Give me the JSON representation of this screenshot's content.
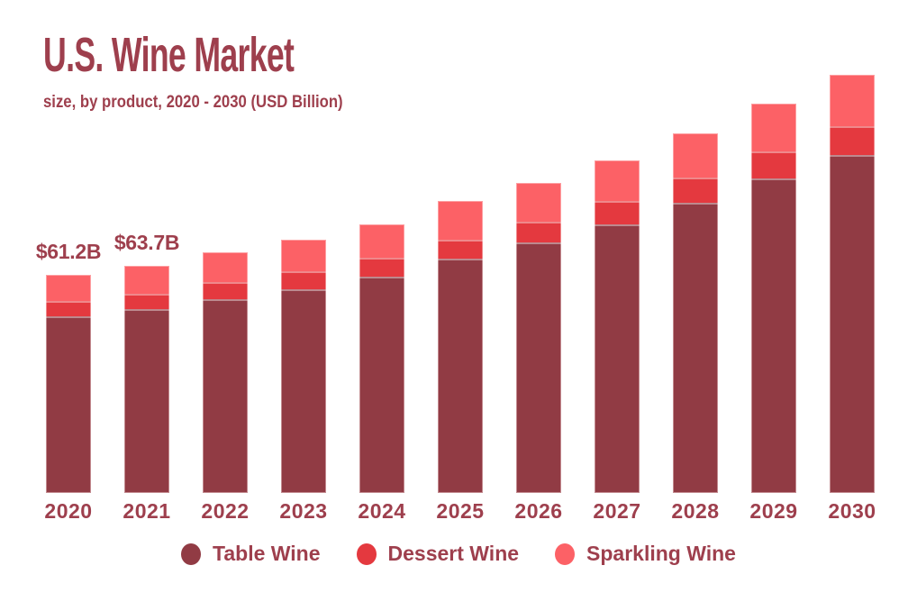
{
  "header": {
    "title": "U.S. Wine Market",
    "subtitle": "size, by product, 2020 - 2030 (USD Billion)"
  },
  "chart_data": {
    "type": "bar",
    "stacked": true,
    "title": "U.S. Wine Market",
    "subtitle": "size, by product, 2020 - 2030 (USD Billion)",
    "unit": "USD Billion",
    "categories": [
      "2020",
      "2021",
      "2022",
      "2023",
      "2024",
      "2025",
      "2026",
      "2027",
      "2028",
      "2029",
      "2030"
    ],
    "series": [
      {
        "name": "Table Wine",
        "color": "#913B44",
        "values": [
          49.4,
          51.4,
          54.2,
          57.2,
          60.6,
          65.7,
          70.2,
          75.2,
          81.4,
          88.1,
          94.6
        ]
      },
      {
        "name": "Dessert Wine",
        "color": "#E4393F",
        "values": [
          4.3,
          4.5,
          4.8,
          5.0,
          5.3,
          5.2,
          5.9,
          6.5,
          7.0,
          7.6,
          8.2
        ]
      },
      {
        "name": "Sparkling Wine",
        "color": "#FC6166",
        "values": [
          7.5,
          7.8,
          8.4,
          8.7,
          9.3,
          10.8,
          10.9,
          11.4,
          12.3,
          13.3,
          14.5
        ]
      }
    ],
    "totals": [
      61.2,
      63.7,
      67.4,
      70.9,
      75.2,
      81.7,
      87.0,
      93.1,
      100.7,
      109.0,
      117.3
    ],
    "annotations": [
      {
        "category": "2020",
        "text": "$61.2B"
      },
      {
        "category": "2021",
        "text": "$63.7B"
      }
    ],
    "legend": [
      "Table Wine",
      "Dessert Wine",
      "Sparkling Wine"
    ],
    "legend_position": "bottom",
    "grid": false,
    "axes_visible": false,
    "ylim": [
      0,
      120
    ]
  },
  "colors": {
    "background": "#FFFFFF",
    "text": "#9E3F4D",
    "table_wine": "#913B44",
    "dessert_wine": "#E4393F",
    "sparkling_wine": "#FC6166"
  }
}
